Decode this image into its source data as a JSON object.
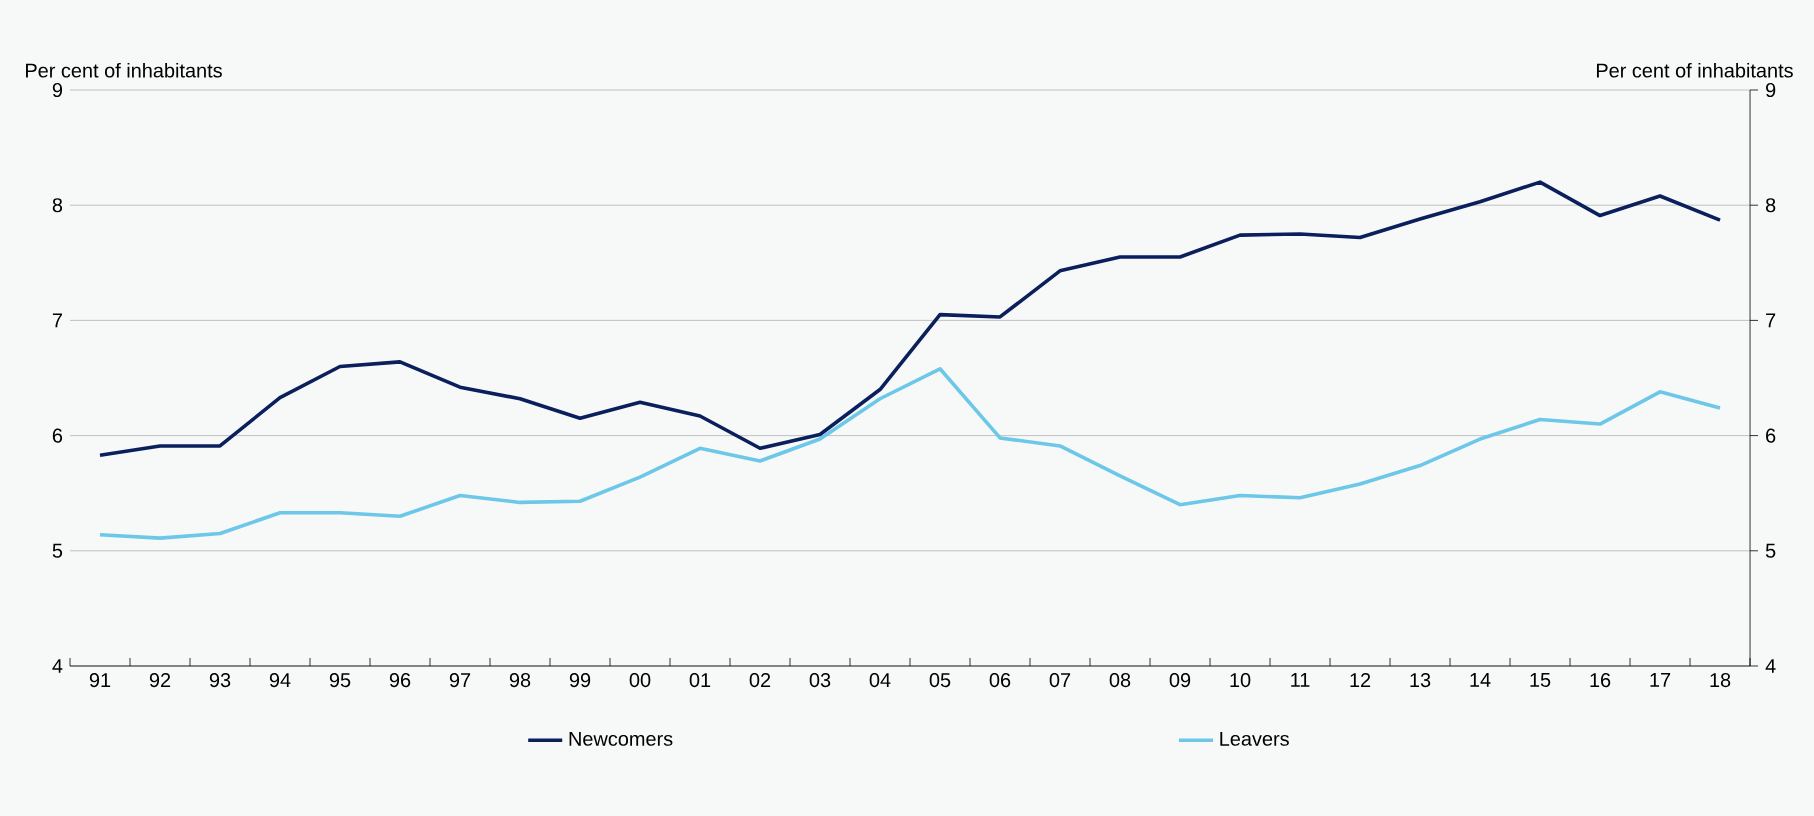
{
  "chart_data": {
    "type": "line",
    "categories": [
      "91",
      "92",
      "93",
      "94",
      "95",
      "96",
      "97",
      "98",
      "99",
      "00",
      "01",
      "02",
      "03",
      "04",
      "05",
      "06",
      "07",
      "08",
      "09",
      "10",
      "11",
      "12",
      "13",
      "14",
      "15",
      "16",
      "17",
      "18"
    ],
    "series": [
      {
        "name": "Newcomers",
        "color": "#0a1f5c",
        "values": [
          5.83,
          5.91,
          5.91,
          6.33,
          6.6,
          6.64,
          6.42,
          6.32,
          6.15,
          6.29,
          6.17,
          5.89,
          6.01,
          6.4,
          7.05,
          7.03,
          7.43,
          7.55,
          7.55,
          7.74,
          7.75,
          7.72,
          7.88,
          8.03,
          8.2,
          7.91,
          8.08,
          7.87
        ]
      },
      {
        "name": "Leavers",
        "color": "#6cc7e8",
        "values": [
          5.14,
          5.11,
          5.15,
          5.33,
          5.33,
          5.3,
          5.48,
          5.42,
          5.43,
          5.64,
          5.89,
          5.78,
          5.97,
          6.32,
          6.58,
          5.98,
          5.91,
          5.65,
          5.4,
          5.48,
          5.46,
          5.58,
          5.74,
          5.97,
          6.14,
          6.1,
          6.38,
          6.24
        ]
      }
    ],
    "annotations": [
      "Per cent of inhabitants",
      "Per cent of inhabitants"
    ],
    "ylim": [
      4,
      9
    ],
    "yticks": [
      4,
      5,
      6,
      7,
      8,
      9
    ],
    "y2lim": [
      4,
      9
    ],
    "y2ticks": [
      4,
      5,
      6,
      7,
      8,
      9
    ],
    "grid": "y",
    "legend": "bottom",
    "line_style": "solid",
    "marker": "none"
  }
}
